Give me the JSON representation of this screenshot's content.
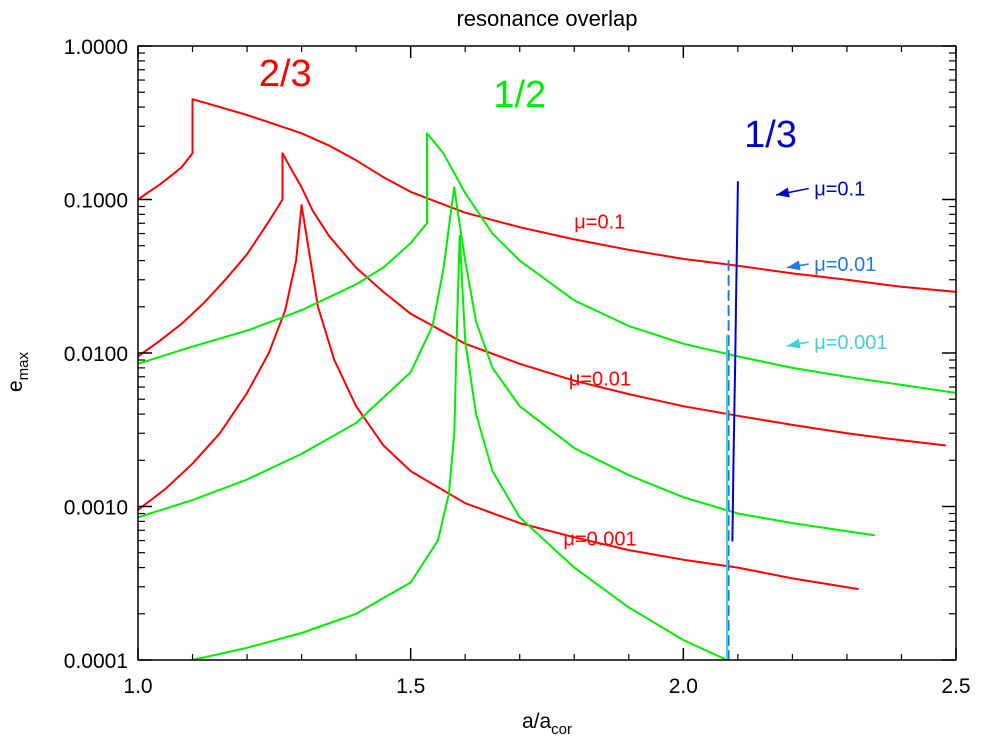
{
  "chart_data": {
    "type": "line",
    "title": "resonance overlap",
    "xlabel_main": "a/a",
    "xlabel_sub": "cor",
    "ylabel_main": "e",
    "ylabel_sub": "max",
    "xlim": [
      1.0,
      2.5
    ],
    "ylim": [
      0.0001,
      1.0
    ],
    "y_scale": "log",
    "x_ticks": [
      {
        "value": 1.0,
        "label": "1.0"
      },
      {
        "value": 1.5,
        "label": "1.5"
      },
      {
        "value": 2.0,
        "label": "2.0"
      },
      {
        "value": 2.5,
        "label": "2.5"
      }
    ],
    "y_ticks": [
      {
        "value": 1.0,
        "label": "1.0000"
      },
      {
        "value": 0.1,
        "label": "0.1000"
      },
      {
        "value": 0.01,
        "label": "0.0100"
      },
      {
        "value": 0.001,
        "label": "0.0010"
      },
      {
        "value": 0.0001,
        "label": "0.0001"
      }
    ],
    "colors": {
      "res_2_3": "#ff0000",
      "res_1_2": "#00ee00",
      "res_1_3_mu01": "#0000d0",
      "res_1_3_mu001": "#1e78e8",
      "res_1_3_mu0001": "#40d0d8"
    },
    "resonance_labels": [
      {
        "text": "2/3",
        "x": 1.27,
        "y": 0.55,
        "color": "#ff0000"
      },
      {
        "text": "1/2",
        "x": 1.7,
        "y": 0.4,
        "color": "#00ee00"
      },
      {
        "text": "1/3",
        "x": 2.16,
        "y": 0.22,
        "color": "#0000d0"
      }
    ],
    "mu_labels": [
      {
        "text": "μ=0.1",
        "x": 1.8,
        "y": 0.072,
        "color": "#ff0000"
      },
      {
        "text": "μ=0.01",
        "x": 1.79,
        "y": 0.0068,
        "color": "#ff0000"
      },
      {
        "text": "μ=0.001",
        "x": 1.78,
        "y": 0.00062,
        "color": "#ff0000"
      },
      {
        "text": "μ=0.1",
        "x": 2.24,
        "y": 0.118,
        "color": "#0000d0"
      },
      {
        "text": "μ=0.01",
        "x": 2.24,
        "y": 0.038,
        "color": "#1e78e8"
      },
      {
        "text": "μ=0.001",
        "x": 2.24,
        "y": 0.0118,
        "color": "#40d0d8"
      }
    ],
    "arrows": [
      {
        "x_from": 2.23,
        "y_from": 0.118,
        "x_to": 2.17,
        "y_to": 0.107,
        "color": "#0000d0"
      },
      {
        "x_from": 2.23,
        "y_from": 0.038,
        "x_to": 2.19,
        "y_to": 0.036,
        "color": "#1e78e8"
      },
      {
        "x_from": 2.23,
        "y_from": 0.0118,
        "x_to": 2.19,
        "y_to": 0.0111,
        "color": "#40d0d8"
      }
    ],
    "series": [
      {
        "group": "2/3",
        "color": "#ff0000",
        "dash": false,
        "x": [
          1.0,
          1.02,
          1.04,
          1.06,
          1.08,
          1.1,
          1.1,
          1.15,
          1.2,
          1.25,
          1.3,
          1.35,
          1.4,
          1.45,
          1.5,
          1.6,
          1.7,
          1.8,
          1.9,
          2.0,
          2.1,
          2.2,
          2.3,
          2.4,
          2.5
        ],
        "y": [
          0.1,
          0.112,
          0.125,
          0.142,
          0.162,
          0.2,
          0.45,
          0.4,
          0.355,
          0.31,
          0.27,
          0.225,
          0.18,
          0.14,
          0.112,
          0.082,
          0.066,
          0.055,
          0.047,
          0.041,
          0.037,
          0.033,
          0.03,
          0.027,
          0.025
        ]
      },
      {
        "group": "2/3",
        "color": "#ff0000",
        "dash": false,
        "x": [
          1.0,
          1.04,
          1.08,
          1.12,
          1.16,
          1.2,
          1.24,
          1.265,
          1.265,
          1.28,
          1.3,
          1.32,
          1.35,
          1.4,
          1.45,
          1.5,
          1.6,
          1.7,
          1.8,
          1.9,
          2.0,
          2.1,
          2.2,
          2.3,
          2.4,
          2.48
        ],
        "y": [
          0.0095,
          0.012,
          0.0155,
          0.021,
          0.03,
          0.044,
          0.072,
          0.1,
          0.2,
          0.16,
          0.12,
          0.085,
          0.058,
          0.036,
          0.025,
          0.018,
          0.0115,
          0.0085,
          0.0066,
          0.0054,
          0.0045,
          0.0039,
          0.0034,
          0.003,
          0.0027,
          0.0025
        ]
      },
      {
        "group": "2/3",
        "color": "#ff0000",
        "dash": false,
        "x": [
          1.0,
          1.05,
          1.1,
          1.15,
          1.2,
          1.24,
          1.27,
          1.29,
          1.3,
          1.31,
          1.33,
          1.36,
          1.4,
          1.45,
          1.5,
          1.6,
          1.7,
          1.8,
          1.9,
          2.0,
          2.1,
          2.2,
          2.32
        ],
        "y": [
          0.00095,
          0.0013,
          0.0019,
          0.003,
          0.0055,
          0.01,
          0.019,
          0.04,
          0.092,
          0.055,
          0.02,
          0.009,
          0.0045,
          0.0025,
          0.0017,
          0.00105,
          0.00078,
          0.00063,
          0.00052,
          0.00045,
          0.0004,
          0.00034,
          0.00029
        ]
      },
      {
        "group": "1/2",
        "color": "#00ee00",
        "dash": false,
        "x": [
          1.0,
          1.1,
          1.2,
          1.3,
          1.4,
          1.45,
          1.5,
          1.53,
          1.53,
          1.56,
          1.6,
          1.65,
          1.7,
          1.8,
          1.9,
          2.0,
          2.1,
          2.2,
          2.3,
          2.4,
          2.5
        ],
        "y": [
          0.0085,
          0.011,
          0.014,
          0.019,
          0.028,
          0.036,
          0.052,
          0.07,
          0.27,
          0.2,
          0.11,
          0.06,
          0.04,
          0.022,
          0.015,
          0.0115,
          0.0095,
          0.008,
          0.007,
          0.0062,
          0.0055
        ]
      },
      {
        "group": "1/2",
        "color": "#00ee00",
        "dash": false,
        "x": [
          1.0,
          1.1,
          1.2,
          1.3,
          1.4,
          1.5,
          1.54,
          1.56,
          1.575,
          1.58,
          1.585,
          1.6,
          1.62,
          1.65,
          1.7,
          1.8,
          1.9,
          2.0,
          2.1,
          2.2,
          2.35
        ],
        "y": [
          0.00085,
          0.0011,
          0.0015,
          0.0022,
          0.0035,
          0.0075,
          0.015,
          0.035,
          0.09,
          0.12,
          0.09,
          0.04,
          0.016,
          0.008,
          0.0045,
          0.0024,
          0.0016,
          0.00115,
          0.0009,
          0.00078,
          0.00065
        ]
      },
      {
        "group": "1/2",
        "color": "#00ee00",
        "dash": false,
        "x": [
          1.1,
          1.2,
          1.3,
          1.4,
          1.5,
          1.55,
          1.57,
          1.58,
          1.585,
          1.59,
          1.6,
          1.62,
          1.65,
          1.7,
          1.8,
          1.9,
          2.0,
          2.08
        ],
        "y": [
          0.0001,
          0.00012,
          0.00015,
          0.0002,
          0.00032,
          0.0006,
          0.0012,
          0.003,
          0.015,
          0.058,
          0.012,
          0.004,
          0.0017,
          0.00085,
          0.0004,
          0.00022,
          0.000135,
          0.0001
        ]
      },
      {
        "group": "1/3",
        "color": "#0000d0",
        "dash": false,
        "x": [
          2.09,
          2.092,
          2.095,
          2.097,
          2.099,
          2.1
        ],
        "y": [
          0.0006,
          0.002,
          0.008,
          0.025,
          0.07,
          0.13
        ]
      },
      {
        "group": "1/3",
        "color": "#1e78e8",
        "dash": true,
        "x": [
          2.083,
          2.083,
          2.083,
          2.083
        ],
        "y": [
          0.0001,
          0.0005,
          0.004,
          0.042
        ]
      },
      {
        "group": "1/3",
        "color": "#40d0d8",
        "dash": false,
        "x": [
          2.08,
          2.08,
          2.08
        ],
        "y": [
          0.0001,
          0.001,
          0.013
        ]
      }
    ]
  }
}
